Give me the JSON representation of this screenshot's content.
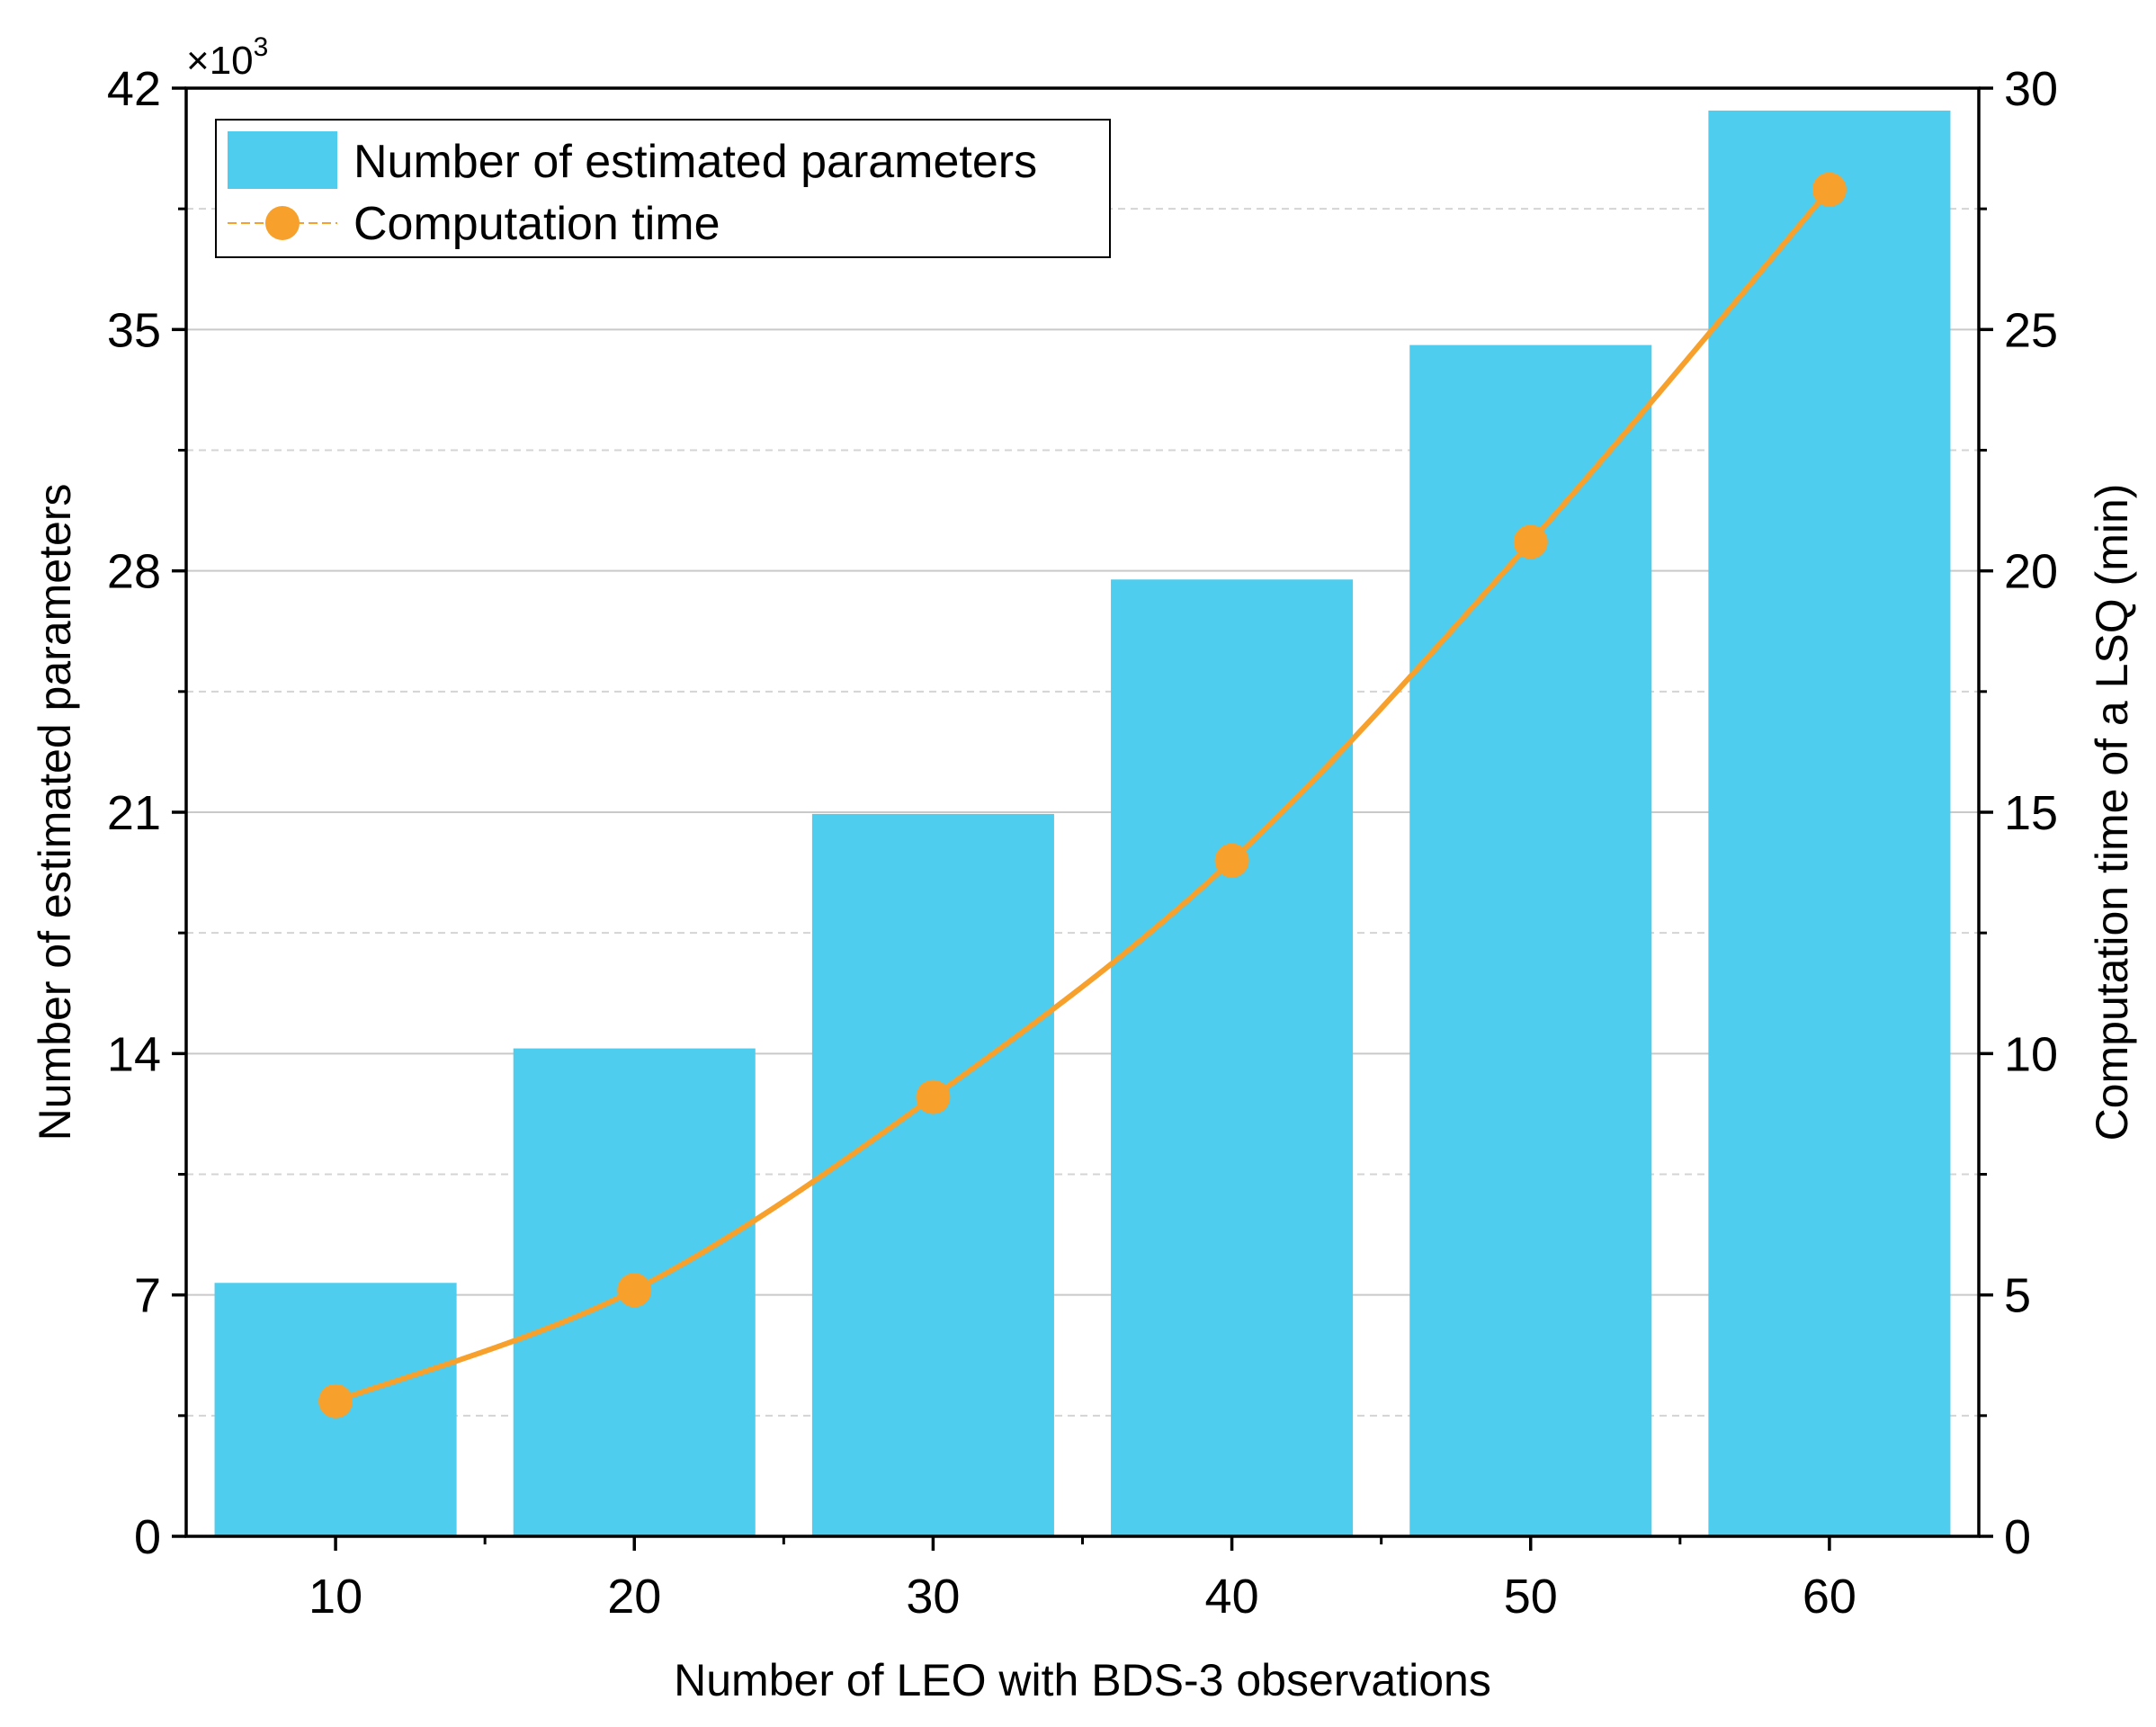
{
  "chart_data": {
    "type": "bar",
    "title": "",
    "categories": [
      "10",
      "20",
      "30",
      "40",
      "50",
      "60"
    ],
    "series": [
      {
        "name": "Number of estimated parameters",
        "type": "bar",
        "axis": "left",
        "color": "#4FCDEF",
        "values": [
          7.35,
          14.15,
          20.95,
          27.75,
          34.55,
          41.35
        ]
      },
      {
        "name": "Computation time",
        "type": "line",
        "axis": "right",
        "color": "#F7A02C",
        "values": [
          2.8,
          5.1,
          9.1,
          14.0,
          20.6,
          27.9
        ]
      }
    ],
    "xlabel": "Number of LEO with BDS-3 observations",
    "ylabel_left": "Number of estimated parameters",
    "ylabel_right": "Computation time of a LSQ (min)",
    "y_multiplier_label": "×10",
    "y_multiplier_exp": "3",
    "ylim_left": [
      0,
      42
    ],
    "yticks_left": [
      "0",
      "7",
      "14",
      "21",
      "28",
      "35",
      "42"
    ],
    "ylim_right": [
      0,
      30
    ],
    "yticks_right": [
      "0",
      "5",
      "10",
      "15",
      "20",
      "25",
      "30"
    ],
    "xticks": [
      "10",
      "20",
      "30",
      "40",
      "50",
      "60"
    ],
    "grid": true,
    "legend_position": "top-left"
  }
}
